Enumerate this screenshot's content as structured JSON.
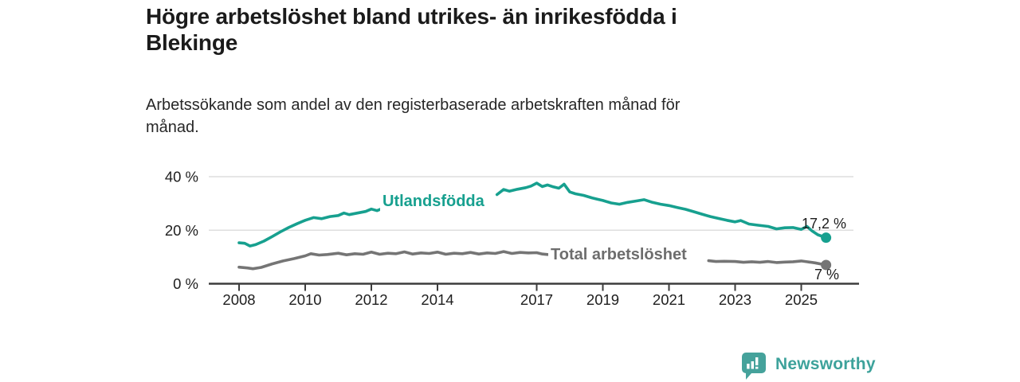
{
  "header": {
    "title_lines": [
      "Högre arbetslöshet bland utrikes- än inrikesfödda i",
      "Blekinge"
    ],
    "subtitle_lines": [
      "Arbetssökande som andel av den registerbaserade arbetskraften månad för",
      "månad."
    ]
  },
  "chart_data": {
    "type": "line",
    "x_unit": "decimal year (monthly data)",
    "xlim": [
      2008,
      2025.95
    ],
    "ylim": [
      0,
      40
    ],
    "grid": "horizontal",
    "x_ticks": [
      2008,
      2010,
      2012,
      2014,
      2017,
      2019,
      2021,
      2023,
      2025
    ],
    "y_ticks": [
      {
        "value": 0,
        "label": "0 %"
      },
      {
        "value": 20,
        "label": "20 %"
      },
      {
        "value": 40,
        "label": "40 %"
      }
    ],
    "axis_color": "#3d3d3d",
    "grid_color": "#d8d8d8",
    "series": [
      {
        "name": "Utlandsfödda",
        "color": "#17a08f",
        "end_label": "17,2 %",
        "end_value": 17.2,
        "label_gap_note": "line interrupted by inline series label between 2012.3 and 2015.8",
        "segments": [
          [
            [
              2008.0,
              15.3
            ],
            [
              2008.17,
              15.1
            ],
            [
              2008.33,
              14.1
            ],
            [
              2008.5,
              14.6
            ],
            [
              2008.75,
              15.9
            ],
            [
              2009.0,
              17.6
            ],
            [
              2009.25,
              19.4
            ],
            [
              2009.5,
              21.0
            ],
            [
              2009.75,
              22.4
            ],
            [
              2010.0,
              23.7
            ],
            [
              2010.25,
              24.7
            ],
            [
              2010.5,
              24.3
            ],
            [
              2010.75,
              25.1
            ],
            [
              2011.0,
              25.5
            ],
            [
              2011.17,
              26.4
            ],
            [
              2011.33,
              25.8
            ],
            [
              2011.58,
              26.4
            ],
            [
              2011.83,
              27.0
            ],
            [
              2012.0,
              27.9
            ],
            [
              2012.17,
              27.3
            ],
            [
              2012.33,
              28.1
            ]
          ],
          [
            [
              2015.8,
              33.3
            ],
            [
              2016.0,
              35.2
            ],
            [
              2016.17,
              34.6
            ],
            [
              2016.42,
              35.3
            ],
            [
              2016.67,
              35.9
            ],
            [
              2016.83,
              36.5
            ],
            [
              2017.0,
              37.6
            ],
            [
              2017.17,
              36.3
            ],
            [
              2017.33,
              36.9
            ],
            [
              2017.5,
              36.2
            ],
            [
              2017.67,
              35.7
            ],
            [
              2017.83,
              37.2
            ],
            [
              2018.0,
              34.3
            ],
            [
              2018.17,
              33.6
            ],
            [
              2018.42,
              33.0
            ],
            [
              2018.67,
              32.1
            ],
            [
              2018.83,
              31.6
            ],
            [
              2019.0,
              31.1
            ],
            [
              2019.25,
              30.2
            ],
            [
              2019.5,
              29.7
            ],
            [
              2019.75,
              30.4
            ],
            [
              2020.0,
              30.9
            ],
            [
              2020.25,
              31.4
            ],
            [
              2020.5,
              30.4
            ],
            [
              2020.75,
              29.7
            ],
            [
              2021.0,
              29.2
            ],
            [
              2021.25,
              28.5
            ],
            [
              2021.5,
              27.8
            ],
            [
              2021.75,
              26.9
            ],
            [
              2022.0,
              26.0
            ],
            [
              2022.25,
              25.1
            ],
            [
              2022.5,
              24.4
            ],
            [
              2022.75,
              23.7
            ],
            [
              2023.0,
              23.1
            ],
            [
              2023.17,
              23.6
            ],
            [
              2023.42,
              22.3
            ],
            [
              2023.67,
              21.9
            ],
            [
              2024.0,
              21.4
            ],
            [
              2024.25,
              20.5
            ],
            [
              2024.5,
              20.9
            ],
            [
              2024.75,
              21.0
            ],
            [
              2025.0,
              20.3
            ],
            [
              2025.17,
              21.4
            ],
            [
              2025.33,
              19.7
            ],
            [
              2025.5,
              18.3
            ],
            [
              2025.75,
              17.2
            ]
          ]
        ]
      },
      {
        "name": "Total arbetslöshet",
        "color": "#757575",
        "end_label": "7 %",
        "end_value": 7,
        "label_gap_note": "line interrupted by inline series label between 2017.35 and 2022.2",
        "segments": [
          [
            [
              2008.0,
              6.2
            ],
            [
              2008.25,
              5.9
            ],
            [
              2008.42,
              5.6
            ],
            [
              2008.67,
              6.1
            ],
            [
              2009.0,
              7.4
            ],
            [
              2009.33,
              8.5
            ],
            [
              2009.67,
              9.4
            ],
            [
              2010.0,
              10.4
            ],
            [
              2010.17,
              11.2
            ],
            [
              2010.42,
              10.7
            ],
            [
              2010.67,
              10.9
            ],
            [
              2011.0,
              11.4
            ],
            [
              2011.25,
              10.8
            ],
            [
              2011.5,
              11.2
            ],
            [
              2011.75,
              11.0
            ],
            [
              2012.0,
              11.8
            ],
            [
              2012.25,
              11.0
            ],
            [
              2012.5,
              11.4
            ],
            [
              2012.75,
              11.2
            ],
            [
              2013.0,
              11.9
            ],
            [
              2013.25,
              11.1
            ],
            [
              2013.5,
              11.5
            ],
            [
              2013.75,
              11.3
            ],
            [
              2014.0,
              11.8
            ],
            [
              2014.25,
              11.0
            ],
            [
              2014.5,
              11.4
            ],
            [
              2014.75,
              11.2
            ],
            [
              2015.0,
              11.7
            ],
            [
              2015.25,
              11.1
            ],
            [
              2015.5,
              11.5
            ],
            [
              2015.75,
              11.3
            ],
            [
              2016.0,
              12.0
            ],
            [
              2016.25,
              11.3
            ],
            [
              2016.5,
              11.7
            ],
            [
              2016.75,
              11.5
            ],
            [
              2017.0,
              11.6
            ],
            [
              2017.17,
              11.1
            ],
            [
              2017.33,
              10.9
            ]
          ],
          [
            [
              2022.2,
              8.6
            ],
            [
              2022.42,
              8.3
            ],
            [
              2022.67,
              8.4
            ],
            [
              2023.0,
              8.3
            ],
            [
              2023.25,
              8.0
            ],
            [
              2023.5,
              8.2
            ],
            [
              2023.75,
              8.0
            ],
            [
              2024.0,
              8.3
            ],
            [
              2024.25,
              7.9
            ],
            [
              2024.5,
              8.1
            ],
            [
              2024.75,
              8.2
            ],
            [
              2025.0,
              8.5
            ],
            [
              2025.17,
              8.2
            ],
            [
              2025.42,
              7.8
            ],
            [
              2025.75,
              7.0
            ]
          ]
        ]
      }
    ]
  },
  "footer": {
    "brand": "Newsworthy",
    "logo_color": "#45a29b"
  }
}
